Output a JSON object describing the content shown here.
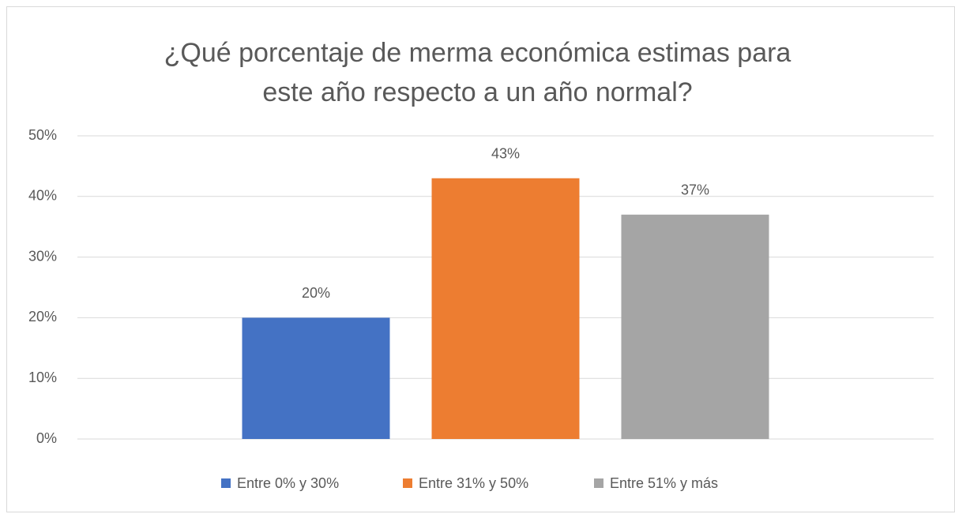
{
  "chart_data": {
    "type": "bar",
    "title": "¿Qué porcentaje de merma económica estimas para\neste año respecto a un año normal?",
    "categories": [
      null
    ],
    "series": [
      {
        "name": "Entre 0% y 30%",
        "color": "#4472c4",
        "values": [
          20
        ],
        "value_labels": [
          "20%"
        ]
      },
      {
        "name": "Entre 31% y 50%",
        "color": "#ed7d31",
        "values": [
          43
        ],
        "value_labels": [
          "43%"
        ]
      },
      {
        "name": "Entre 51% y más",
        "color": "#a5a5a5",
        "values": [
          37
        ],
        "value_labels": [
          "37%"
        ]
      }
    ],
    "ylim": [
      0,
      50
    ],
    "yticks": [
      {
        "value": 0,
        "label": "0%"
      },
      {
        "value": 10,
        "label": "10%"
      },
      {
        "value": 20,
        "label": "20%"
      },
      {
        "value": 30,
        "label": "30%"
      },
      {
        "value": 40,
        "label": "40%"
      },
      {
        "value": 50,
        "label": "50%"
      }
    ],
    "grid": true,
    "legend": "bottom"
  }
}
